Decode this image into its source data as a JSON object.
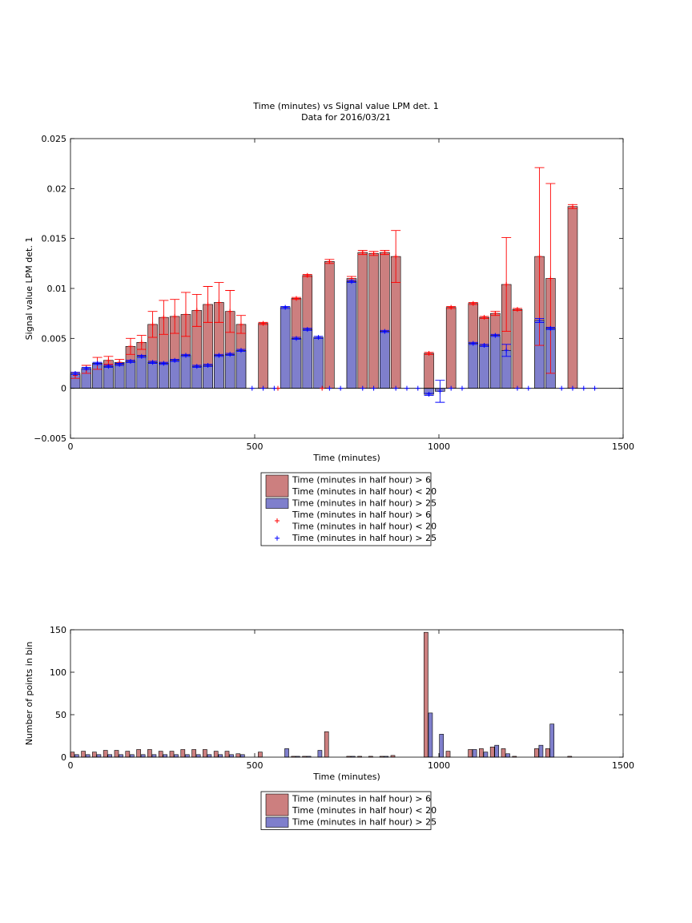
{
  "title_line1": "Time (minutes) vs Signal value LPM det. 1",
  "title_line2": "Data for 2016/03/21",
  "colors": {
    "red_fill": "#cc7f7f",
    "blue_fill": "#7f7fcc",
    "red_marker": "#ff0000",
    "blue_marker": "#0000ff",
    "axis": "#000000"
  },
  "chart_data": [
    {
      "type": "bar",
      "ylabel": "Signal value LPM det. 1",
      "xlabel": "Time (minutes)",
      "xlim": [
        0,
        1500
      ],
      "ylim": [
        -0.005,
        0.025
      ],
      "xticks": [
        "0",
        "500",
        "1000",
        "1500"
      ],
      "yticks": [
        "−0.005",
        "0",
        "0.005",
        "0.01",
        "0.015",
        "0.02",
        "0.025"
      ],
      "legend": {
        "placement": "below",
        "entries": [
          {
            "label": "Time (minutes in half hour) > 6",
            "label2": "Time (minutes in half hour) < 20",
            "kind": "red-bar"
          },
          {
            "label": "Time (minutes in half hour) > 25",
            "kind": "blue-bar"
          },
          {
            "label": "Time (minutes in half hour) > 6",
            "label2": "Time (minutes in half hour) < 20",
            "kind": "red-marker"
          },
          {
            "label": "Time (minutes in half hour) > 25",
            "kind": "blue-marker"
          }
        ]
      },
      "series": [
        {
          "name": "Time (minutes in half hour) > 6 / < 20",
          "points": [
            {
              "x": 13,
              "y": 0.0013,
              "err": 0.0003
            },
            {
              "x": 43,
              "y": 0.0019,
              "err": 0.0004
            },
            {
              "x": 73,
              "y": 0.0025,
              "err": 0.0006
            },
            {
              "x": 103,
              "y": 0.0028,
              "err": 0.0004
            },
            {
              "x": 133,
              "y": 0.0026,
              "err": 0.0003
            },
            {
              "x": 163,
              "y": 0.0042,
              "err": 0.0008
            },
            {
              "x": 193,
              "y": 0.0046,
              "err": 0.0007
            },
            {
              "x": 223,
              "y": 0.0064,
              "err": 0.0013
            },
            {
              "x": 253,
              "y": 0.0071,
              "err": 0.0017
            },
            {
              "x": 283,
              "y": 0.0072,
              "err": 0.0017
            },
            {
              "x": 313,
              "y": 0.0074,
              "err": 0.0022
            },
            {
              "x": 343,
              "y": 0.0078,
              "err": 0.0016
            },
            {
              "x": 373,
              "y": 0.0084,
              "err": 0.0018
            },
            {
              "x": 403,
              "y": 0.0086,
              "err": 0.002
            },
            {
              "x": 433,
              "y": 0.0077,
              "err": 0.0021
            },
            {
              "x": 463,
              "y": 0.0064,
              "err": 0.0009
            },
            {
              "x": 523,
              "y": 0.0065,
              "err": 0.0001
            },
            {
              "x": 613,
              "y": 0.009,
              "err": 0.0001
            },
            {
              "x": 643,
              "y": 0.0113,
              "err": 0.0001
            },
            {
              "x": 703,
              "y": 0.0127,
              "err": 0.0002
            },
            {
              "x": 763,
              "y": 0.011,
              "err": 0.0002
            },
            {
              "x": 793,
              "y": 0.0136,
              "err": 0.0002
            },
            {
              "x": 823,
              "y": 0.0135,
              "err": 0.0002
            },
            {
              "x": 853,
              "y": 0.0136,
              "err": 0.0002
            },
            {
              "x": 883,
              "y": 0.0132,
              "err": 0.0026
            },
            {
              "x": 973,
              "y": 0.0035,
              "err": 0.0001
            },
            {
              "x": 1033,
              "y": 0.0081,
              "err": 0.0001
            },
            {
              "x": 1093,
              "y": 0.0085,
              "err": 0.0001
            },
            {
              "x": 1123,
              "y": 0.0071,
              "err": 0.0001
            },
            {
              "x": 1153,
              "y": 0.0075,
              "err": 0.0002
            },
            {
              "x": 1183,
              "y": 0.0104,
              "err": 0.0047
            },
            {
              "x": 1213,
              "y": 0.0079,
              "err": 0.0001
            },
            {
              "x": 1273,
              "y": 0.0132,
              "err": 0.0089
            },
            {
              "x": 1303,
              "y": 0.011,
              "err": 0.0095
            },
            {
              "x": 1363,
              "y": 0.0182,
              "err": 0.0002
            }
          ],
          "markers_only_x": [
            563,
            683
          ]
        },
        {
          "name": "Time (minutes in half hour) > 25",
          "points": [
            {
              "x": 13,
              "y": 0.0015,
              "err": 0.0001
            },
            {
              "x": 43,
              "y": 0.002,
              "err": 0.0001
            },
            {
              "x": 73,
              "y": 0.0025,
              "err": 0.0001
            },
            {
              "x": 103,
              "y": 0.0022,
              "err": 0.0001
            },
            {
              "x": 133,
              "y": 0.0024,
              "err": 0.0001
            },
            {
              "x": 163,
              "y": 0.0027,
              "err": 0.0001
            },
            {
              "x": 193,
              "y": 0.0032,
              "err": 0.0001
            },
            {
              "x": 223,
              "y": 0.0026,
              "err": 0.0001
            },
            {
              "x": 253,
              "y": 0.0025,
              "err": 0.0001
            },
            {
              "x": 283,
              "y": 0.0028,
              "err": 0.0001
            },
            {
              "x": 313,
              "y": 0.0033,
              "err": 0.0001
            },
            {
              "x": 343,
              "y": 0.0022,
              "err": 0.0001
            },
            {
              "x": 373,
              "y": 0.0023,
              "err": 0.0001
            },
            {
              "x": 403,
              "y": 0.0033,
              "err": 0.0001
            },
            {
              "x": 433,
              "y": 0.0034,
              "err": 0.0001
            },
            {
              "x": 463,
              "y": 0.0038,
              "err": 0.0001
            },
            {
              "x": 583,
              "y": 0.0081,
              "err": 0.0001
            },
            {
              "x": 613,
              "y": 0.005,
              "err": 0.0001
            },
            {
              "x": 643,
              "y": 0.0059,
              "err": 0.0001
            },
            {
              "x": 673,
              "y": 0.0051,
              "err": 0.0001
            },
            {
              "x": 763,
              "y": 0.0107,
              "err": 0.0001
            },
            {
              "x": 853,
              "y": 0.0057,
              "err": 0.0001
            },
            {
              "x": 973,
              "y": -0.0006,
              "err": 0.0001
            },
            {
              "x": 1003,
              "y": -0.0003,
              "err": 0.0011
            },
            {
              "x": 1093,
              "y": 0.0045,
              "err": 0.0001
            },
            {
              "x": 1123,
              "y": 0.0043,
              "err": 0.0001
            },
            {
              "x": 1153,
              "y": 0.0053,
              "err": 0.0001
            },
            {
              "x": 1183,
              "y": 0.0038,
              "err": 0.0006
            },
            {
              "x": 1273,
              "y": 0.0068,
              "err": 0.0002
            },
            {
              "x": 1303,
              "y": 0.006,
              "err": 0.0001
            }
          ],
          "markers_only_x": [
            493,
            523,
            553,
            703,
            733,
            793,
            823,
            883,
            913,
            943,
            1033,
            1063,
            1213,
            1243,
            1333,
            1363,
            1393,
            1423
          ]
        }
      ]
    },
    {
      "type": "bar",
      "ylabel": "Number of points in bin",
      "xlabel": "Time (minutes)",
      "xlim": [
        0,
        1500
      ],
      "ylim": [
        0,
        150
      ],
      "xticks": [
        "0",
        "500",
        "1000",
        "1500"
      ],
      "yticks": [
        "0",
        "50",
        "100",
        "150"
      ],
      "legend": {
        "placement": "below",
        "entries": [
          {
            "label": "Time (minutes in half hour) > 6",
            "label2": "Time (minutes in half hour) < 20",
            "kind": "red-bar"
          },
          {
            "label": "Time (minutes in half hour) > 25",
            "kind": "blue-bar"
          }
        ]
      },
      "series": [
        {
          "name": "Time (minutes in half hour) > 6 / < 20",
          "x": [
            5,
            35,
            65,
            95,
            125,
            155,
            185,
            215,
            245,
            275,
            305,
            335,
            365,
            395,
            425,
            455,
            515,
            605,
            635,
            695,
            755,
            785,
            815,
            845,
            875,
            965,
            1025,
            1085,
            1115,
            1145,
            1175,
            1205,
            1265,
            1295,
            1355
          ],
          "values": [
            6,
            7,
            6,
            8,
            8,
            7,
            9,
            9,
            7,
            7,
            9,
            9,
            9,
            7,
            7,
            4,
            6,
            1,
            1,
            30,
            1,
            1,
            1,
            1,
            2,
            147,
            7,
            9,
            10,
            12,
            10,
            1,
            10,
            10,
            1
          ]
        },
        {
          "name": "Time (minutes in half hour) > 25",
          "x": [
            17,
            47,
            77,
            107,
            137,
            167,
            197,
            227,
            257,
            287,
            317,
            347,
            377,
            407,
            437,
            467,
            587,
            617,
            647,
            677,
            767,
            857,
            977,
            1007,
            1097,
            1127,
            1157,
            1187,
            1277,
            1307
          ],
          "values": [
            3,
            3,
            3,
            3,
            3,
            3,
            3,
            3,
            3,
            3,
            3,
            3,
            3,
            3,
            3,
            3,
            10,
            1,
            1,
            8,
            1,
            1,
            52,
            27,
            9,
            6,
            14,
            4,
            14,
            39
          ]
        }
      ]
    }
  ]
}
